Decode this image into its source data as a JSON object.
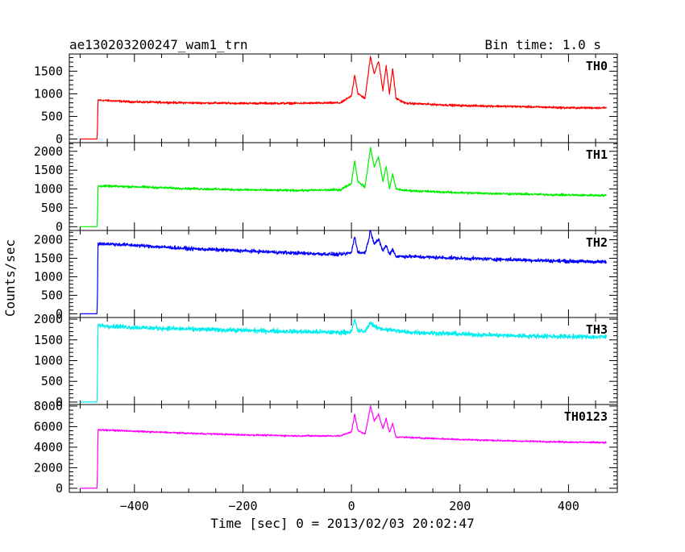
{
  "header": {
    "title": "ae130203200247_wam1_trn",
    "bin_time": "Bin time: 1.0 s"
  },
  "chart_data": {
    "type": "line",
    "title": "ae130203200247_wam1_trn",
    "subtitle": "Bin time: 1.0 s",
    "xlabel": "Time [sec] 0 = 2013/02/03 20:02:47",
    "ylabel": "Counts/sec",
    "xlim": [
      -520,
      490
    ],
    "x_ticks": [
      -400,
      -200,
      0,
      200,
      400
    ],
    "x_tick_labels": [
      "−400",
      "−200",
      "0",
      "200",
      "400"
    ],
    "grid": false,
    "legend": "none",
    "panels": [
      {
        "name": "TH0",
        "color": "#ff0000",
        "ylim": [
          -80,
          1880
        ],
        "y_ticks": [
          0,
          500,
          1000,
          1500
        ],
        "y_tick_labels": [
          "0",
          "500",
          "1000",
          "1500"
        ],
        "x_start": -500,
        "x_end": 470,
        "onset": -468,
        "points": [
          [
            -500,
            0
          ],
          [
            -469,
            0
          ],
          [
            -468,
            280
          ],
          [
            -467,
            860
          ],
          [
            -400,
            820
          ],
          [
            -300,
            800
          ],
          [
            -200,
            790
          ],
          [
            -100,
            790
          ],
          [
            -20,
            800
          ],
          [
            0,
            950
          ],
          [
            6,
            1420
          ],
          [
            12,
            1000
          ],
          [
            25,
            900
          ],
          [
            30,
            1350
          ],
          [
            35,
            1820
          ],
          [
            42,
            1450
          ],
          [
            50,
            1720
          ],
          [
            58,
            1080
          ],
          [
            64,
            1620
          ],
          [
            70,
            1000
          ],
          [
            76,
            1560
          ],
          [
            82,
            900
          ],
          [
            100,
            790
          ],
          [
            200,
            740
          ],
          [
            300,
            720
          ],
          [
            400,
            690
          ],
          [
            470,
            690
          ]
        ],
        "noise": 35
      },
      {
        "name": "TH1",
        "color": "#00ee00",
        "ylim": [
          -100,
          2230
        ],
        "y_ticks": [
          0,
          500,
          1000,
          1500,
          2000
        ],
        "y_tick_labels": [
          "0",
          "500",
          "1000",
          "1500",
          "2000"
        ],
        "x_start": -500,
        "x_end": 470,
        "onset": -468,
        "points": [
          [
            -500,
            0
          ],
          [
            -469,
            0
          ],
          [
            -468,
            400
          ],
          [
            -467,
            1080
          ],
          [
            -400,
            1060
          ],
          [
            -300,
            1010
          ],
          [
            -200,
            980
          ],
          [
            -100,
            960
          ],
          [
            -20,
            980
          ],
          [
            0,
            1150
          ],
          [
            6,
            1750
          ],
          [
            12,
            1200
          ],
          [
            25,
            1050
          ],
          [
            30,
            1550
          ],
          [
            35,
            2100
          ],
          [
            42,
            1600
          ],
          [
            50,
            1850
          ],
          [
            58,
            1200
          ],
          [
            64,
            1600
          ],
          [
            70,
            1000
          ],
          [
            76,
            1400
          ],
          [
            82,
            1000
          ],
          [
            100,
            960
          ],
          [
            200,
            900
          ],
          [
            300,
            870
          ],
          [
            400,
            840
          ],
          [
            470,
            830
          ]
        ],
        "noise": 45
      },
      {
        "name": "TH2",
        "color": "#0000ff",
        "ylim": [
          -100,
          2250
        ],
        "y_ticks": [
          0,
          500,
          1000,
          1500,
          2000
        ],
        "y_tick_labels": [
          "0",
          "500",
          "1000",
          "1500",
          "2000"
        ],
        "x_start": -500,
        "x_end": 470,
        "onset": -468,
        "points": [
          [
            -500,
            0
          ],
          [
            -469,
            0
          ],
          [
            -468,
            600
          ],
          [
            -467,
            1900
          ],
          [
            -400,
            1850
          ],
          [
            -300,
            1760
          ],
          [
            -200,
            1700
          ],
          [
            -100,
            1640
          ],
          [
            -20,
            1600
          ],
          [
            0,
            1650
          ],
          [
            6,
            2100
          ],
          [
            12,
            1650
          ],
          [
            25,
            1650
          ],
          [
            30,
            1900
          ],
          [
            35,
            2250
          ],
          [
            42,
            1900
          ],
          [
            50,
            2000
          ],
          [
            58,
            1700
          ],
          [
            64,
            1850
          ],
          [
            70,
            1600
          ],
          [
            76,
            1750
          ],
          [
            82,
            1550
          ],
          [
            100,
            1550
          ],
          [
            200,
            1500
          ],
          [
            300,
            1460
          ],
          [
            400,
            1420
          ],
          [
            470,
            1400
          ]
        ],
        "noise": 70
      },
      {
        "name": "TH3",
        "color": "#00eeee",
        "ylim": [
          -60,
          2040
        ],
        "y_ticks": [
          0,
          500,
          1000,
          1500,
          2000
        ],
        "y_tick_labels": [
          "0",
          "500",
          "1000",
          "1500",
          "2000"
        ],
        "x_start": -500,
        "x_end": 470,
        "onset": -468,
        "points": [
          [
            -500,
            0
          ],
          [
            -469,
            0
          ],
          [
            -468,
            700
          ],
          [
            -467,
            1850
          ],
          [
            -400,
            1800
          ],
          [
            -300,
            1760
          ],
          [
            -200,
            1730
          ],
          [
            -100,
            1700
          ],
          [
            -20,
            1680
          ],
          [
            0,
            1700
          ],
          [
            6,
            1980
          ],
          [
            12,
            1720
          ],
          [
            25,
            1700
          ],
          [
            35,
            1920
          ],
          [
            45,
            1800
          ],
          [
            60,
            1760
          ],
          [
            100,
            1690
          ],
          [
            200,
            1640
          ],
          [
            300,
            1600
          ],
          [
            400,
            1580
          ],
          [
            470,
            1570
          ]
        ],
        "noise": 80
      },
      {
        "name": "TH0123",
        "color": "#ff00ff",
        "ylim": [
          -400,
          8150
        ],
        "y_ticks": [
          0,
          2000,
          4000,
          6000,
          8000
        ],
        "y_tick_labels": [
          "0",
          "2000",
          "4000",
          "6000",
          "8000"
        ],
        "x_start": -500,
        "x_end": 470,
        "onset": -468,
        "points": [
          [
            -500,
            0
          ],
          [
            -469,
            0
          ],
          [
            -468,
            2000
          ],
          [
            -467,
            5700
          ],
          [
            -400,
            5550
          ],
          [
            -300,
            5350
          ],
          [
            -200,
            5200
          ],
          [
            -100,
            5100
          ],
          [
            -20,
            5100
          ],
          [
            0,
            5500
          ],
          [
            6,
            7200
          ],
          [
            12,
            5600
          ],
          [
            25,
            5300
          ],
          [
            30,
            6500
          ],
          [
            35,
            8000
          ],
          [
            42,
            6600
          ],
          [
            50,
            7200
          ],
          [
            58,
            5800
          ],
          [
            64,
            6800
          ],
          [
            70,
            5400
          ],
          [
            76,
            6300
          ],
          [
            82,
            5000
          ],
          [
            100,
            4950
          ],
          [
            200,
            4750
          ],
          [
            300,
            4600
          ],
          [
            400,
            4500
          ],
          [
            470,
            4450
          ]
        ],
        "noise": 120
      }
    ]
  }
}
